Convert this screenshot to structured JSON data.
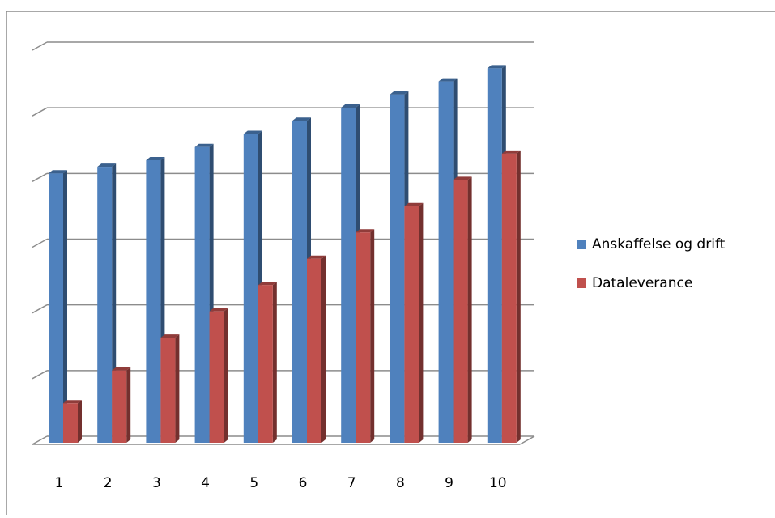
{
  "chart_data": {
    "type": "bar",
    "categories": [
      "1",
      "2",
      "3",
      "4",
      "5",
      "6",
      "7",
      "8",
      "9",
      "10"
    ],
    "series": [
      {
        "name": "Anskaffelse og drift",
        "color": "#4F81BD",
        "values": [
          4.1,
          4.2,
          4.3,
          4.5,
          4.7,
          4.9,
          5.1,
          5.3,
          5.5,
          5.7
        ]
      },
      {
        "name": "Dataleverance",
        "color": "#C0504D",
        "values": [
          0.6,
          1.1,
          1.6,
          2.0,
          2.4,
          2.8,
          3.2,
          3.6,
          4.0,
          4.4
        ]
      }
    ],
    "ylim": [
      0,
      6
    ],
    "gridlines": true,
    "legend": "right",
    "style": "3d-clustered-column"
  }
}
